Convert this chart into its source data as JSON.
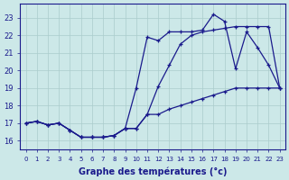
{
  "xlabel": "Graphe des températures (°c)",
  "background_color": "#cce8e8",
  "grid_color": "#aacccc",
  "line_color": "#1a1a8c",
  "hours": [
    0,
    1,
    2,
    3,
    4,
    5,
    6,
    7,
    8,
    9,
    10,
    11,
    12,
    13,
    14,
    15,
    16,
    17,
    18,
    19,
    20,
    21,
    22,
    23
  ],
  "line1": [
    17.0,
    17.1,
    16.9,
    17.0,
    16.6,
    16.2,
    16.2,
    16.2,
    16.3,
    16.7,
    19.0,
    21.9,
    21.7,
    22.2,
    22.2,
    22.2,
    22.3,
    23.2,
    22.8,
    20.1,
    22.2,
    21.3,
    20.3,
    19.0
  ],
  "line2": [
    17.0,
    17.1,
    16.9,
    17.0,
    16.6,
    16.2,
    16.2,
    16.2,
    16.3,
    16.7,
    16.7,
    17.5,
    19.1,
    20.3,
    21.5,
    22.0,
    22.2,
    22.3,
    22.4,
    22.5,
    22.5,
    22.5,
    22.5,
    19.0
  ],
  "line3": [
    17.0,
    17.1,
    16.9,
    17.0,
    16.6,
    16.2,
    16.2,
    16.2,
    16.3,
    16.7,
    16.7,
    17.5,
    17.5,
    17.8,
    18.0,
    18.2,
    18.4,
    18.6,
    18.8,
    19.0,
    19.0,
    19.0,
    19.0,
    19.0
  ],
  "ylim": [
    15.5,
    23.8
  ],
  "xlim": [
    -0.5,
    23.5
  ],
  "yticks": [
    16,
    17,
    18,
    19,
    20,
    21,
    22,
    23
  ]
}
